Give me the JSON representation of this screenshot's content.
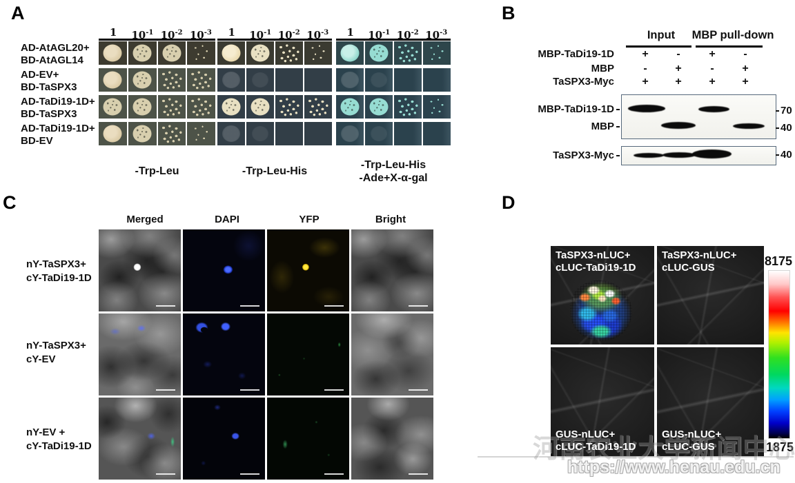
{
  "panelA": {
    "label": "A",
    "dilutions": [
      {
        "base": "1",
        "exp": ""
      },
      {
        "base": "10",
        "exp": "-1"
      },
      {
        "base": "10",
        "exp": "-2"
      },
      {
        "base": "10",
        "exp": "-3"
      }
    ],
    "row_labels": [
      [
        "AD-AtAGL20+",
        "BD-AtAGL14"
      ],
      [
        "AD-EV+",
        "BD-TaSPX3"
      ],
      [
        "AD-TaDi19-1D+",
        "BD-TaSPX3"
      ],
      [
        "AD-TaDi19-1D+",
        "BD-EV"
      ]
    ],
    "plates": [
      {
        "media": [
          "-Trp-Leu"
        ],
        "theme": "olive",
        "cells": [
          [
            "solid",
            "speck",
            "speck",
            "sparse"
          ],
          [
            "solid",
            "speck",
            "scatter",
            "scatter"
          ],
          [
            "speck",
            "speck",
            "scatter",
            "scatter"
          ],
          [
            "solid",
            "speck",
            "scatter",
            "sparse"
          ]
        ]
      },
      {
        "media": [
          "-Trp-Leu-His"
        ],
        "theme": "slate",
        "cells": [
          [
            "solid",
            "speck",
            "scatter",
            "sparse"
          ],
          [
            "ghost",
            "dim",
            "none",
            "none"
          ],
          [
            "speck",
            "speck",
            "scatter",
            "scatter"
          ],
          [
            "ghost",
            "dim",
            "none",
            "none"
          ]
        ]
      },
      {
        "media": [
          "-Trp-Leu-His",
          "-Ade+X-α-gal"
        ],
        "theme": "teal",
        "cells": [
          [
            "solid",
            "speck",
            "scatter",
            "sparse"
          ],
          [
            "ghost",
            "dim",
            "none",
            "none"
          ],
          [
            "speck",
            "speck",
            "scatter",
            "sparse"
          ],
          [
            "ghost",
            "dim",
            "none",
            "none"
          ]
        ]
      }
    ]
  },
  "panelB": {
    "label": "B",
    "groups": [
      "Input",
      "MBP pull-down"
    ],
    "condition_rows": [
      {
        "label": "MBP-TaDi19-1D",
        "values": [
          "+",
          "-",
          "+",
          "-"
        ]
      },
      {
        "label": "MBP",
        "values": [
          "-",
          "+",
          "-",
          "+"
        ]
      },
      {
        "label": "TaSPX3-Myc",
        "values": [
          "+",
          "+",
          "+",
          "+"
        ]
      }
    ],
    "blot1": {
      "row_labels": [
        "MBP-TaDi19-1D",
        "MBP"
      ],
      "mw": [
        "70",
        "40"
      ],
      "bands": [
        [
          1,
          0,
          1,
          0
        ],
        [
          0,
          1,
          0,
          1
        ]
      ]
    },
    "blot2": {
      "row_label": "TaSPX3-Myc",
      "mw": "40",
      "bands": [
        1,
        1,
        1,
        0
      ]
    }
  },
  "panelC": {
    "label": "C",
    "col_headers": [
      "Merged",
      "DAPI",
      "YFP",
      "Bright"
    ],
    "row_labels": [
      [
        "nY-TaSPX3+",
        "cY-TaDi19-1D"
      ],
      [
        "nY-TaSPX3+",
        "cY-EV"
      ],
      [
        "nY-EV +",
        "cY-TaDi19-1D"
      ]
    ],
    "tiles": [
      [
        "merged-pos",
        "dapi-pos",
        "yfp-pos",
        "bright-a"
      ],
      [
        "merged-neg1",
        "dapi-neg1",
        "yfp-neg1",
        "bright-b"
      ],
      [
        "merged-neg2",
        "dapi-neg2",
        "yfp-neg2",
        "bright-c"
      ]
    ]
  },
  "panelD": {
    "label": "D",
    "quadrants": [
      {
        "lines": [
          "TaSPX3-nLUC+",
          "cLUC-TaDi19-1D"
        ],
        "label_pos": "top",
        "signal": true
      },
      {
        "lines": [
          "TaSPX3-nLUC+",
          "cLUC-GUS"
        ],
        "label_pos": "top",
        "signal": false
      },
      {
        "lines": [
          "GUS-nLUC+",
          "cLUC-TaDi19-1D"
        ],
        "label_pos": "bottom",
        "signal": false
      },
      {
        "lines": [
          "GUS-nLUC+",
          "cLUC-GUS"
        ],
        "label_pos": "bottom",
        "signal": false
      }
    ],
    "colorbar": {
      "max": "8175",
      "min": "1875"
    }
  },
  "watermark": {
    "cn": "河南农业大学新闻中心",
    "url": "https://www.henau.edu.cn"
  }
}
